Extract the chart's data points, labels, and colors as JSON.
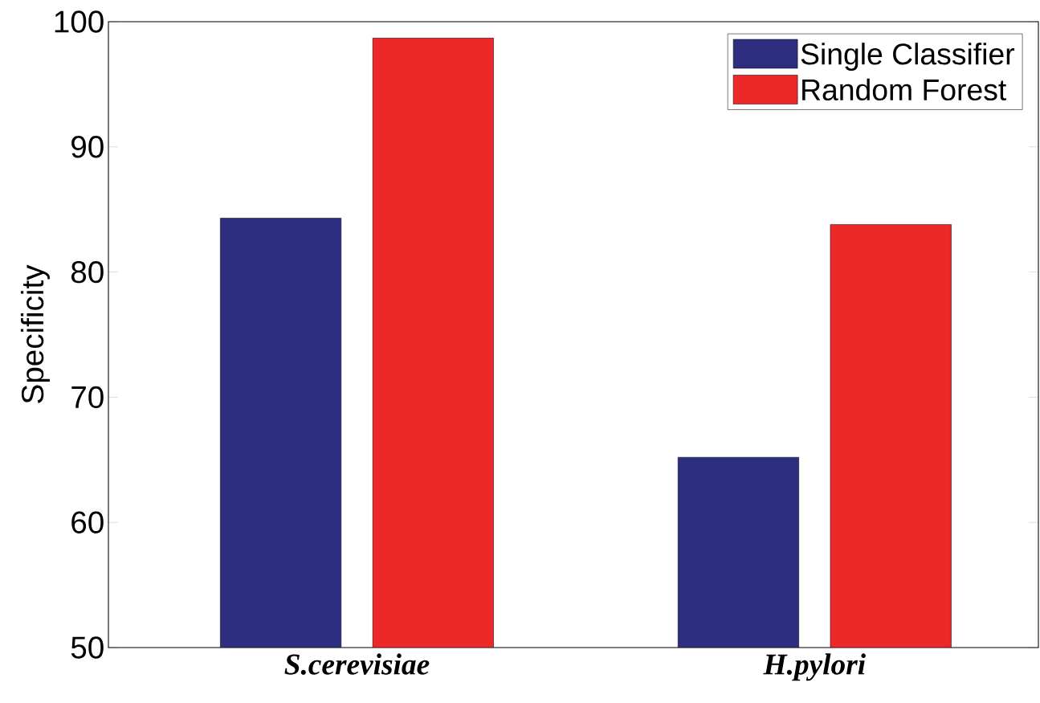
{
  "chart_data": {
    "type": "bar",
    "ylabel": "Specificity",
    "categories": [
      "S.cerevisiae",
      "H.pylori"
    ],
    "series": [
      {
        "name": "Single Classifier",
        "color": "#2e2e80",
        "values": [
          84.3,
          65.2
        ]
      },
      {
        "name": "Random Forest",
        "color": "#ec2828",
        "values": [
          98.7,
          83.8
        ]
      }
    ],
    "ylim": [
      50,
      100
    ],
    "yticks": [
      50,
      60,
      70,
      80,
      90,
      100
    ],
    "legend": "top right"
  }
}
